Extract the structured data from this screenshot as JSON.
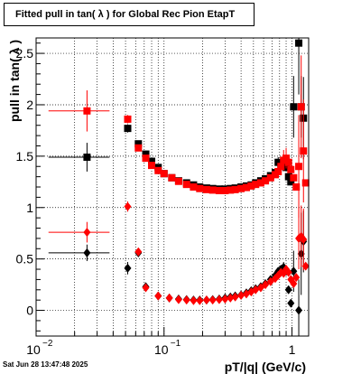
{
  "title": "Fitted pull in tan( λ ) for Global Rec Pion EtapT",
  "timestamp": "Sat Jun 28 13:47:48 2025",
  "chart_data": {
    "type": "scatter",
    "title": "Fitted pull in tan( λ ) for Global Rec Pion EtapT",
    "xlabel": "pT/|q| (GeV/c)",
    "ylabel": "pull in tan( λ )",
    "xscale": "log",
    "xlim": [
      0.01,
      1.35
    ],
    "ylim": [
      -0.25,
      2.65
    ],
    "grid": true,
    "x_ticks": [
      {
        "v": 0.01,
        "base": "10",
        "exp": "−2"
      },
      {
        "v": 0.1,
        "base": "10",
        "exp": "−1"
      },
      {
        "v": 1,
        "base": "1",
        "exp": ""
      }
    ],
    "y_ticks": [
      {
        "v": 0,
        "label": "0"
      },
      {
        "v": 0.5,
        "label": "0.5"
      },
      {
        "v": 1,
        "label": "1"
      },
      {
        "v": 1.5,
        "label": "1.5"
      },
      {
        "v": 2,
        "label": "2"
      },
      {
        "v": 2.5,
        "label": "2.5"
      }
    ],
    "colors": {
      "black": "#000000",
      "red": "#ff0000"
    },
    "series": [
      {
        "color": "black",
        "marker": "square",
        "points": [
          {
            "x": 0.025,
            "xerr": [
              0.0125,
              0.0375
            ],
            "y": 1.49,
            "yerr": 0.14
          },
          {
            "x": 0.052,
            "y": 1.77,
            "yerr": 0.04
          },
          {
            "x": 0.063,
            "y": 1.62,
            "yerr": 0.02
          },
          {
            "x": 0.072,
            "y": 1.52
          },
          {
            "x": 0.08,
            "y": 1.45
          },
          {
            "x": 0.09,
            "y": 1.39
          },
          {
            "x": 0.1,
            "y": 1.33
          },
          {
            "x": 0.115,
            "y": 1.29
          },
          {
            "x": 0.13,
            "y": 1.26
          },
          {
            "x": 0.15,
            "y": 1.24
          },
          {
            "x": 0.17,
            "y": 1.22
          },
          {
            "x": 0.19,
            "y": 1.2
          },
          {
            "x": 0.215,
            "y": 1.19
          },
          {
            "x": 0.24,
            "y": 1.185
          },
          {
            "x": 0.27,
            "y": 1.18
          },
          {
            "x": 0.3,
            "y": 1.18
          },
          {
            "x": 0.33,
            "y": 1.185
          },
          {
            "x": 0.36,
            "y": 1.19
          },
          {
            "x": 0.4,
            "y": 1.2
          },
          {
            "x": 0.44,
            "y": 1.21
          },
          {
            "x": 0.48,
            "y": 1.22
          },
          {
            "x": 0.52,
            "y": 1.24
          },
          {
            "x": 0.57,
            "y": 1.26
          },
          {
            "x": 0.62,
            "y": 1.28
          },
          {
            "x": 0.68,
            "y": 1.31
          },
          {
            "x": 0.74,
            "y": 1.34
          },
          {
            "x": 0.78,
            "y": 1.44,
            "yerr": 0.05
          },
          {
            "x": 0.82,
            "y": 1.41
          },
          {
            "x": 0.86,
            "y": 1.42,
            "yerr": 0.05
          },
          {
            "x": 0.9,
            "y": 1.39
          },
          {
            "x": 0.94,
            "y": 1.3
          },
          {
            "x": 0.98,
            "y": 1.25
          },
          {
            "x": 1.03,
            "y": 1.98,
            "yerr": 0.3
          },
          {
            "x": 1.13,
            "y": 2.6,
            "yerr": 0.5
          },
          {
            "x": 1.18,
            "y": 1.98,
            "yerr": 0.3
          },
          {
            "x": 1.23,
            "y": 1.87,
            "yerr": 0.4
          }
        ]
      },
      {
        "color": "red",
        "marker": "square",
        "points": [
          {
            "x": 0.025,
            "xerr": [
              0.0125,
              0.0375
            ],
            "y": 1.94,
            "yerr": 0.2
          },
          {
            "x": 0.052,
            "y": 1.86,
            "yerr": 0.04
          },
          {
            "x": 0.063,
            "y": 1.58
          },
          {
            "x": 0.072,
            "y": 1.48
          },
          {
            "x": 0.08,
            "y": 1.41
          },
          {
            "x": 0.09,
            "y": 1.36
          },
          {
            "x": 0.1,
            "y": 1.33
          },
          {
            "x": 0.115,
            "y": 1.29
          },
          {
            "x": 0.13,
            "y": 1.255
          },
          {
            "x": 0.15,
            "y": 1.225
          },
          {
            "x": 0.17,
            "y": 1.2
          },
          {
            "x": 0.19,
            "y": 1.185
          },
          {
            "x": 0.215,
            "y": 1.175
          },
          {
            "x": 0.24,
            "y": 1.17
          },
          {
            "x": 0.27,
            "y": 1.165
          },
          {
            "x": 0.3,
            "y": 1.165
          },
          {
            "x": 0.33,
            "y": 1.17
          },
          {
            "x": 0.36,
            "y": 1.175
          },
          {
            "x": 0.4,
            "y": 1.185
          },
          {
            "x": 0.44,
            "y": 1.195
          },
          {
            "x": 0.48,
            "y": 1.21
          },
          {
            "x": 0.52,
            "y": 1.225
          },
          {
            "x": 0.57,
            "y": 1.24
          },
          {
            "x": 0.62,
            "y": 1.26
          },
          {
            "x": 0.68,
            "y": 1.29
          },
          {
            "x": 0.74,
            "y": 1.32
          },
          {
            "x": 0.78,
            "y": 1.35
          },
          {
            "x": 0.82,
            "y": 1.4
          },
          {
            "x": 0.86,
            "y": 1.46,
            "yerr": 0.1
          },
          {
            "x": 0.9,
            "y": 1.48,
            "yerr": 0.1
          },
          {
            "x": 0.94,
            "y": 1.44
          },
          {
            "x": 0.98,
            "y": 1.37
          },
          {
            "x": 1.03,
            "y": 1.29
          },
          {
            "x": 1.08,
            "y": 1.2
          },
          {
            "x": 1.13,
            "y": 1.4,
            "yerr": 0.5
          },
          {
            "x": 1.18,
            "y": 1.98,
            "yerr": 0.5
          },
          {
            "x": 1.23,
            "y": 1.55,
            "yerr": 0.5
          },
          {
            "x": 1.28,
            "y": 1.24
          }
        ]
      },
      {
        "color": "black",
        "marker": "diamond",
        "points": [
          {
            "x": 0.025,
            "xerr": [
              0.0125,
              0.0375
            ],
            "y": 0.56,
            "yerr": 0.08
          },
          {
            "x": 0.052,
            "y": 0.41,
            "yerr": 0.06
          },
          {
            "x": 0.063,
            "y": 0.56,
            "yerr": 0.03
          },
          {
            "x": 0.072,
            "y": 0.23
          },
          {
            "x": 0.09,
            "y": 0.14
          },
          {
            "x": 0.11,
            "y": 0.12
          },
          {
            "x": 0.13,
            "y": 0.11
          },
          {
            "x": 0.15,
            "y": 0.105
          },
          {
            "x": 0.17,
            "y": 0.1
          },
          {
            "x": 0.19,
            "y": 0.1
          },
          {
            "x": 0.215,
            "y": 0.1
          },
          {
            "x": 0.24,
            "y": 0.105
          },
          {
            "x": 0.27,
            "y": 0.11
          },
          {
            "x": 0.3,
            "y": 0.12
          },
          {
            "x": 0.33,
            "y": 0.13
          },
          {
            "x": 0.36,
            "y": 0.14
          },
          {
            "x": 0.4,
            "y": 0.15
          },
          {
            "x": 0.44,
            "y": 0.17
          },
          {
            "x": 0.48,
            "y": 0.19
          },
          {
            "x": 0.52,
            "y": 0.21
          },
          {
            "x": 0.57,
            "y": 0.23
          },
          {
            "x": 0.62,
            "y": 0.26
          },
          {
            "x": 0.68,
            "y": 0.3
          },
          {
            "x": 0.74,
            "y": 0.34
          },
          {
            "x": 0.78,
            "y": 0.38
          },
          {
            "x": 0.82,
            "y": 0.4
          },
          {
            "x": 0.86,
            "y": 0.42,
            "yerr": 0.05
          },
          {
            "x": 0.9,
            "y": 0.38
          },
          {
            "x": 0.94,
            "y": 0.2
          },
          {
            "x": 0.98,
            "y": 0.07
          },
          {
            "x": 1.03,
            "y": 0.38,
            "yerr": 0.2
          },
          {
            "x": 1.13,
            "y": 0.0,
            "yerr": 0.3
          },
          {
            "x": 1.18,
            "y": 0.55,
            "yerr": 0.4
          },
          {
            "x": 1.23,
            "y": 0.67,
            "yerr": 0.3
          }
        ]
      },
      {
        "color": "red",
        "marker": "diamond",
        "points": [
          {
            "x": 0.025,
            "xerr": [
              0.0125,
              0.0375
            ],
            "y": 0.76,
            "yerr": 0.1
          },
          {
            "x": 0.052,
            "y": 1.01,
            "yerr": 0.05
          },
          {
            "x": 0.063,
            "y": 0.57,
            "yerr": 0.03
          },
          {
            "x": 0.072,
            "y": 0.22
          },
          {
            "x": 0.09,
            "y": 0.14
          },
          {
            "x": 0.11,
            "y": 0.12
          },
          {
            "x": 0.13,
            "y": 0.105
          },
          {
            "x": 0.15,
            "y": 0.1
          },
          {
            "x": 0.17,
            "y": 0.095
          },
          {
            "x": 0.19,
            "y": 0.095
          },
          {
            "x": 0.215,
            "y": 0.1
          },
          {
            "x": 0.24,
            "y": 0.1
          },
          {
            "x": 0.27,
            "y": 0.105
          },
          {
            "x": 0.3,
            "y": 0.11
          },
          {
            "x": 0.33,
            "y": 0.12
          },
          {
            "x": 0.36,
            "y": 0.13
          },
          {
            "x": 0.4,
            "y": 0.145
          },
          {
            "x": 0.44,
            "y": 0.16
          },
          {
            "x": 0.48,
            "y": 0.18
          },
          {
            "x": 0.52,
            "y": 0.2
          },
          {
            "x": 0.57,
            "y": 0.22
          },
          {
            "x": 0.62,
            "y": 0.25
          },
          {
            "x": 0.68,
            "y": 0.28
          },
          {
            "x": 0.74,
            "y": 0.31
          },
          {
            "x": 0.78,
            "y": 0.34
          },
          {
            "x": 0.82,
            "y": 0.37
          },
          {
            "x": 0.86,
            "y": 0.36
          },
          {
            "x": 0.9,
            "y": 0.4
          },
          {
            "x": 0.94,
            "y": 0.37
          },
          {
            "x": 0.98,
            "y": 0.3
          },
          {
            "x": 1.03,
            "y": 0.26
          },
          {
            "x": 1.08,
            "y": 0.32
          },
          {
            "x": 1.13,
            "y": 0.7,
            "yerr": 0.3
          },
          {
            "x": 1.18,
            "y": 0.72,
            "yerr": 0.3
          },
          {
            "x": 1.23,
            "y": 0.69,
            "yerr": 0.3
          },
          {
            "x": 1.28,
            "y": 0.43
          }
        ]
      }
    ]
  }
}
